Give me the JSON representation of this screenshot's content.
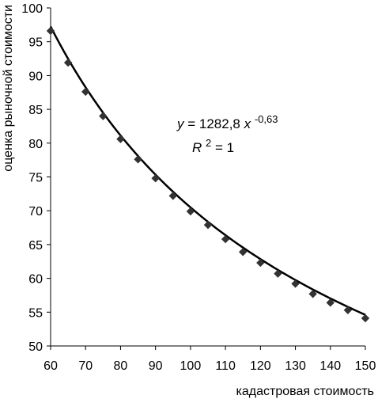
{
  "chart_data": {
    "type": "scatter",
    "xlabel": "кадастровая стоимость",
    "ylabel": "оценка рыночной стоимости",
    "xlim": [
      60,
      150
    ],
    "ylim": [
      50,
      100
    ],
    "xticks": [
      "60",
      "70",
      "80",
      "90",
      "100",
      "110",
      "120",
      "130",
      "140",
      "150"
    ],
    "yticks": [
      "50",
      "55",
      "60",
      "65",
      "70",
      "75",
      "80",
      "85",
      "90",
      "95",
      "100"
    ],
    "grid": false,
    "series": [
      {
        "x": [
          60,
          65,
          70,
          75,
          80,
          85,
          90,
          95,
          100,
          105,
          110,
          115,
          120,
          125,
          130,
          135,
          140,
          145,
          150
        ],
        "y": [
          96.6,
          91.9,
          87.6,
          84.0,
          80.6,
          77.6,
          74.8,
          72.2,
          69.9,
          67.9,
          65.8,
          63.9,
          62.3,
          60.7,
          59.2,
          57.7,
          56.4,
          55.3,
          54.1
        ],
        "marker": "diamond",
        "color": "#333333"
      }
    ],
    "trendline": {
      "type": "power",
      "a": 1282.8,
      "b": -0.63,
      "color": "#000000"
    },
    "annotation": {
      "eq_prefix": "y",
      "eq_equals": " = 1282,8",
      "eq_var": "x",
      "eq_exp": "-0,63",
      "r2_prefix": "R",
      "r2_exp": "2",
      "r2_value": " = 1"
    }
  }
}
